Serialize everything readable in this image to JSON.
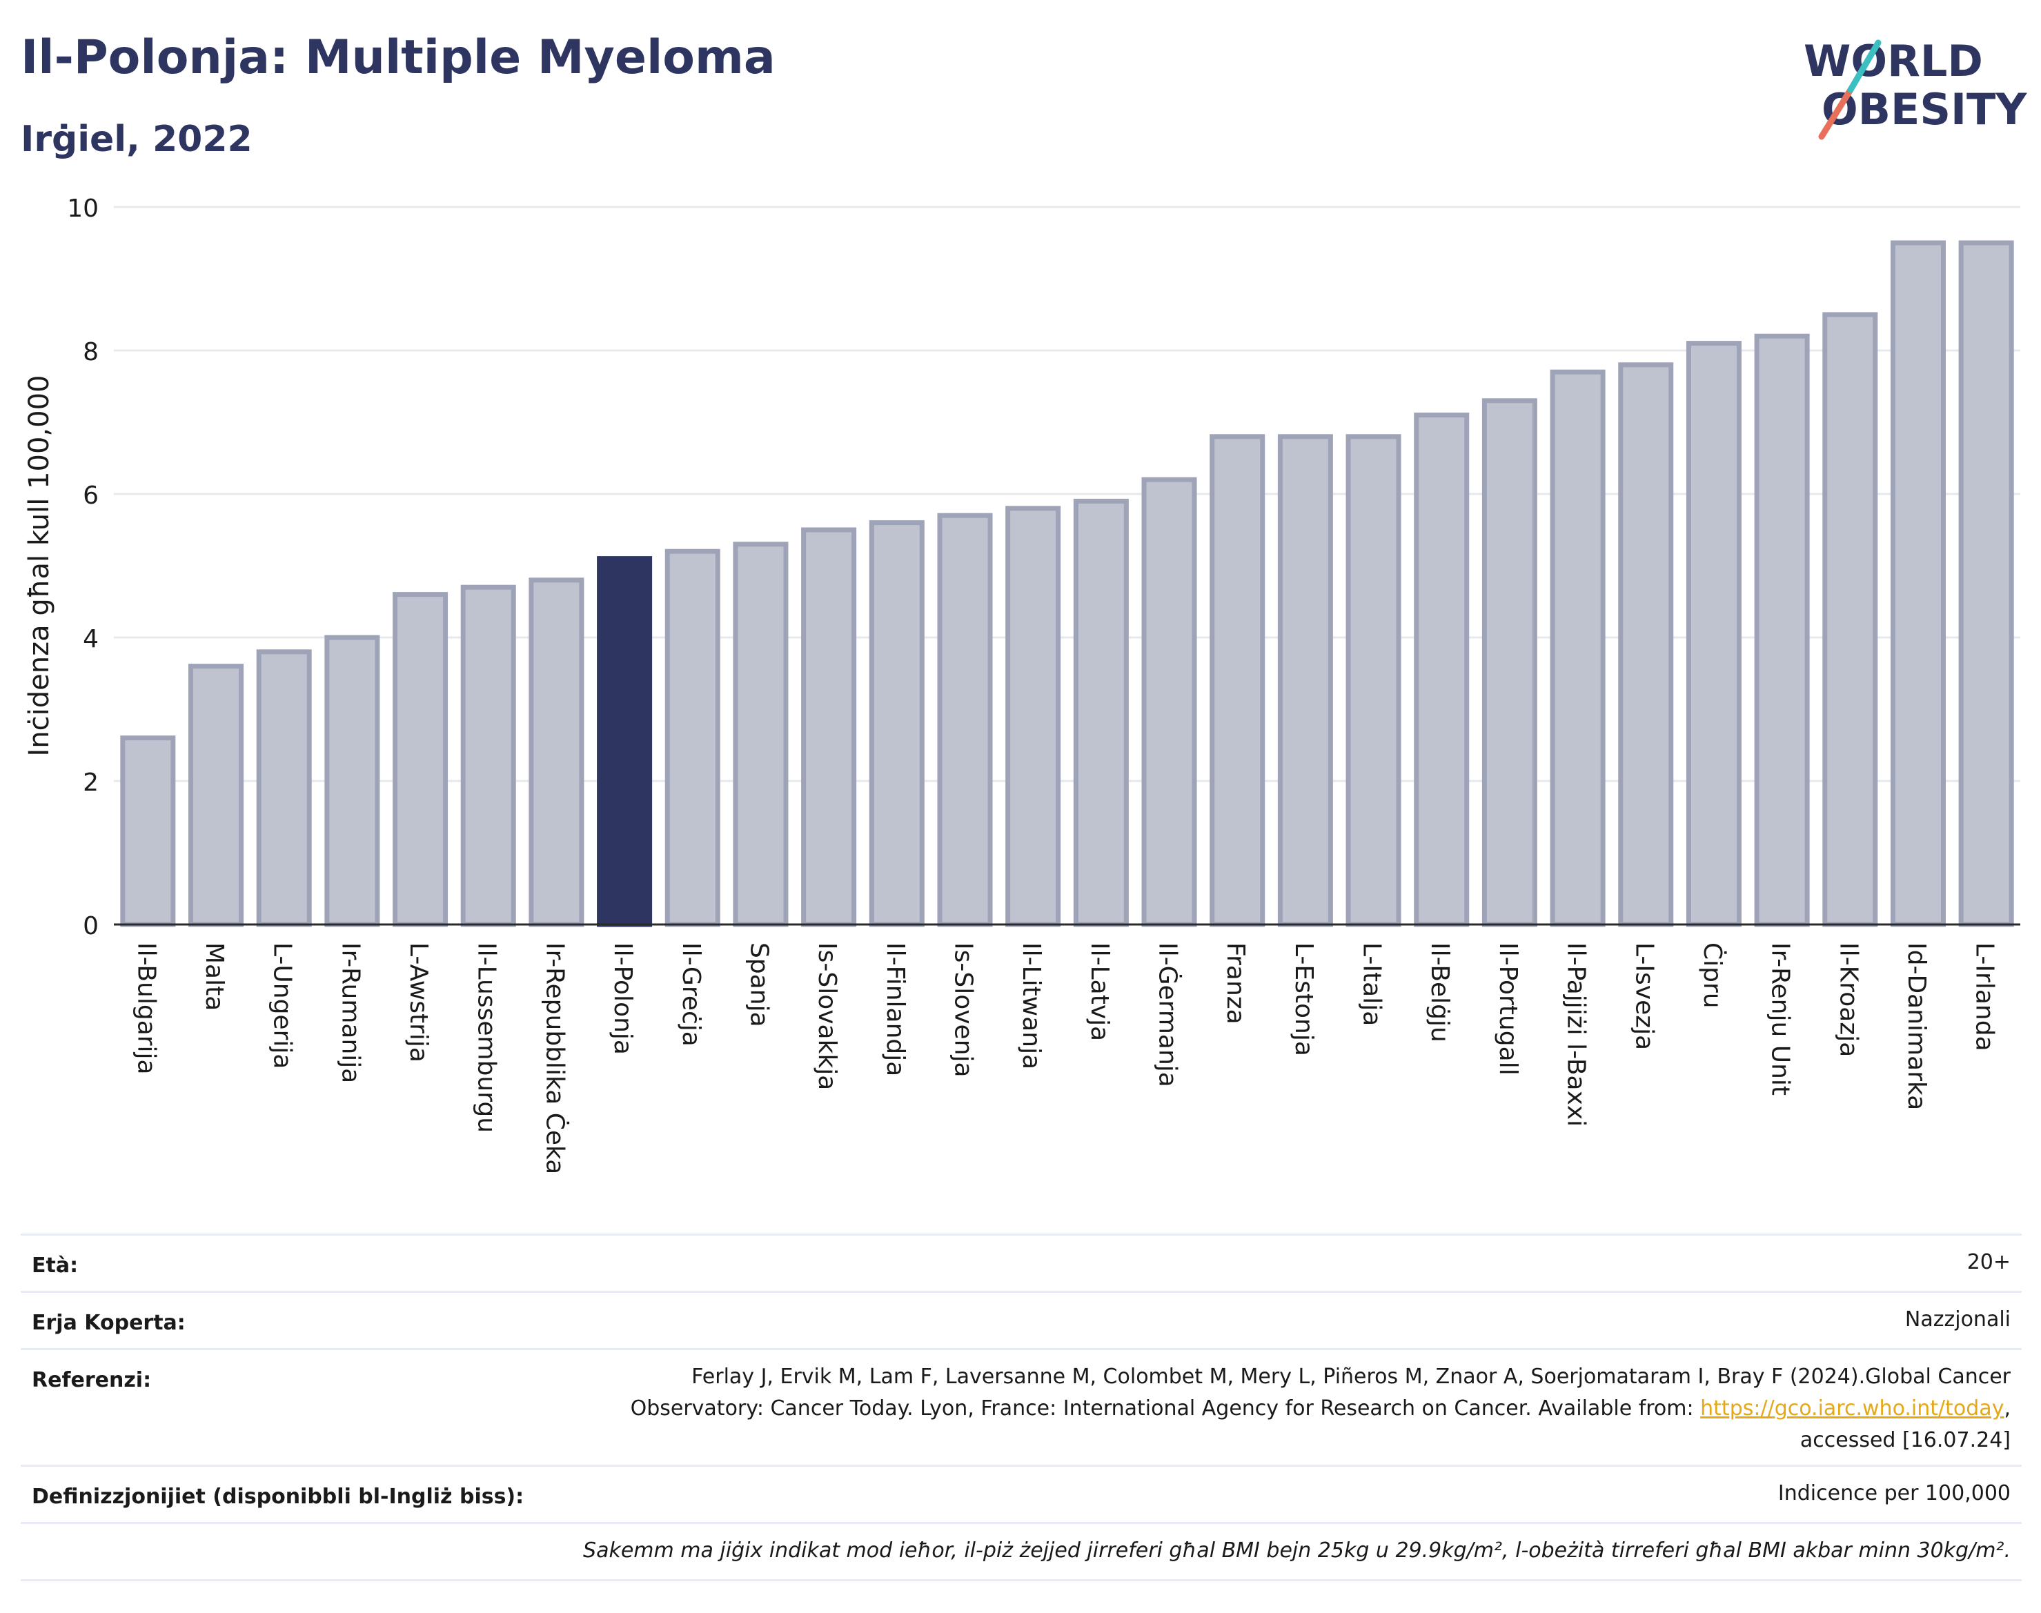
{
  "header": {
    "title": "Il-Polonja: Multiple Myeloma",
    "subtitle": "Irġiel, 2022"
  },
  "logo": {
    "line1": "WORLD",
    "line2": "OBESITY"
  },
  "colors": {
    "highlight": "#2d3560",
    "bar": "#bfc2cf",
    "bar_edge": "#9ea3b8",
    "axis_text": "#1a1a1a",
    "link": "#e6a817"
  },
  "chart_data": {
    "type": "bar",
    "ylabel": "Inċidenza għal kull 100,000",
    "ylim": [
      0,
      10
    ],
    "yticks": [
      "0",
      "2",
      "4",
      "6",
      "8",
      "10"
    ],
    "grid": true,
    "highlight_category": "Il-Polonja",
    "categories": [
      "Il-Bulgarija",
      "Malta",
      "L-Ungerija",
      "Ir-Rumanija",
      "L-Awstrija",
      "Il-Lussemburgu",
      "Ir-Repubblika Ċeka",
      "Il-Polonja",
      "Il-Greċja",
      "Spanja",
      "Is-Slovakkja",
      "Il-Finlandja",
      "Is-Slovenja",
      "Il-Litwanja",
      "Il-Latvja",
      "Il-Ġermanja",
      "Franza",
      "L-Estonja",
      "L-Italja",
      "Il-Belġju",
      "Il-Portugall",
      "Il-Pajjiżi l-Baxxi",
      "L-Isvezja",
      "Ċipru",
      "Ir-Renju Unit",
      "Il-Kroazja",
      "Id-Danimarka",
      "L-Irlanda"
    ],
    "values": [
      2.6,
      3.6,
      3.8,
      4.0,
      4.6,
      4.7,
      4.8,
      5.1,
      5.2,
      5.3,
      5.5,
      5.6,
      5.7,
      5.8,
      5.9,
      6.2,
      6.8,
      6.8,
      6.8,
      7.1,
      7.3,
      7.7,
      7.8,
      8.1,
      8.2,
      8.5,
      9.5,
      9.5
    ]
  },
  "footer": {
    "age_label": "Età:",
    "age_value": "20+",
    "coverage_label": "Erja Koperta:",
    "coverage_value": "Nazzjonali",
    "references_label": "Referenzi:",
    "references_line1": "Ferlay J, Ervik M, Lam F, Laversanne M, Colombet M, Mery L, Piñeros M, Znaor A, Soerjomataram I, Bray F (2024).Global Cancer",
    "references_line2_pre": "Observatory: Cancer Today. Lyon, France: International Agency for Research on Cancer. Available from: ",
    "references_link": "https://gco.iarc.who.int/today",
    "references_line2_post": ",",
    "references_line3": "accessed [16.07.24]",
    "definitions_label": "Definizzjonijiet (disponibbli bl-Ingliż biss):",
    "definitions_value": "Indicence per 100,000",
    "note": "Sakemm ma jiġix indikat mod ieħor, il-piż żejjed jirreferi għal BMI bejn 25kg u 29.9kg/m², l-obeżità tirreferi għal BMI akbar minn 30kg/m²."
  }
}
